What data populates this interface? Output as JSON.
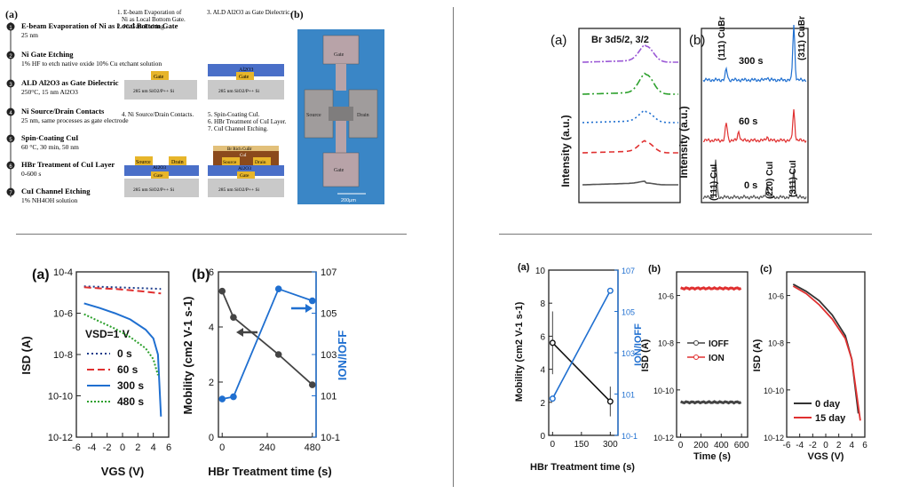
{
  "panel1": {
    "a_label": "(a)",
    "b_label": "(b)",
    "steps": [
      {
        "title": "E-beam Evaporation of Ni as Local Bottom Gate",
        "detail": "25 nm"
      },
      {
        "title": "Ni Gate Etching",
        "detail": "1% HF to etch native oxide 10% Cu etchant solution"
      },
      {
        "title": "ALD Al2O3 as Gate Dielectric",
        "detail": "250°C, 15 nm Al2O3"
      },
      {
        "title": "Ni Source/Drain Contacts",
        "detail": "25 nm, same processes as gate electrode"
      },
      {
        "title": "Spin-Coating CuI",
        "detail": "60 °C, 30 min, 50 nm"
      },
      {
        "title": "HBr Treatment of CuI Layer",
        "detail": "0-600 s"
      },
      {
        "title": "CuI Channel Etching",
        "detail": "1% NH4OH solution"
      }
    ],
    "cap1": [
      "1. E-beam Evaporation of",
      "Ni as Local Bottom Gate.",
      "2. Ni Gate Etching."
    ],
    "cap2": [
      "3. ALD Al2O3 as Gate Dielectric."
    ],
    "cap3": [
      "4. Ni Source/Drain Contacts."
    ],
    "cap4": [
      "5. Spin-Coating CuI.",
      "6. HBr Treatment of CuI Layer.",
      "7. CuI Channel Etching."
    ],
    "substrate": "285 nm SiO2/P++ Si",
    "gate": "Gate",
    "source": "Source",
    "drain": "Drain",
    "al2o3": "Al2O3",
    "br_rich": "Br Rich CuBr",
    "cui_layer": "CuI",
    "device": {
      "gate": "Gate",
      "source": "Source",
      "drain": "Drain",
      "scale": "200μm"
    }
  },
  "panel2": {
    "a_label": "(a)",
    "b_label": "(b)",
    "ylabel": "Intensity (a.u.)",
    "br_label": "Br 3d5/2, 3/2",
    "xrd_top": [
      "(111) CuBr",
      "300 s",
      "(311) CuBr"
    ],
    "xrd_mid": "60 s",
    "xrd_bot": [
      "(111) CuI",
      "(220) CuI",
      "(311) CuI",
      "0 s"
    ],
    "colors": {
      "purple": "#9b59d6",
      "green": "#2ca02c",
      "blue": "#1f6fd0",
      "red": "#e03030",
      "gray": "#555555"
    }
  },
  "panel3": {
    "a_label": "(a)",
    "b_label": "(b)",
    "a_ylabel": "ISD (A)",
    "a_xlabel": "VGS (V)",
    "vsd": "VSD=1 V",
    "legend": [
      "0 s",
      "60 s",
      "300 s",
      "480 s"
    ],
    "a_yticks": [
      "10-4",
      "10-6",
      "10-8",
      "10-10",
      "10-12"
    ],
    "a_xticks": [
      "-6",
      "-4",
      "-2",
      "0",
      "2",
      "4",
      "6"
    ],
    "b_ylabel": "Mobility (cm2 V-1 s-1)",
    "b_y2label": "ION/IOFF",
    "b_xlabel": "HBr Treatment time (s)",
    "b_yticks": [
      "6",
      "4",
      "2",
      "0"
    ],
    "b_y2ticks": [
      "107",
      "105",
      "103",
      "101",
      "10-1"
    ],
    "b_xticks": [
      "0",
      "240",
      "480"
    ]
  },
  "panel4": {
    "a_label": "(a)",
    "b_label": "(b)",
    "c_label": "(c)",
    "a_ylabel": "Mobility (cm2 V-1 s-1)",
    "a_y2label": "ION/IOFF",
    "a_xlabel": "HBr Treatment time (s)",
    "a_yticks": [
      "10",
      "8",
      "6",
      "4",
      "2",
      "0"
    ],
    "a_y2ticks": [
      "107",
      "105",
      "103",
      "101",
      "10-1"
    ],
    "a_xticks": [
      "0",
      "150",
      "300"
    ],
    "b_ylabel": "ISD (A)",
    "b_xlabel": "Time (s)",
    "b_yticks": [
      "10-6",
      "10-8",
      "10-10",
      "10-12"
    ],
    "b_xticks": [
      "0",
      "200",
      "400",
      "600"
    ],
    "b_legend": [
      "IOFF",
      "ION"
    ],
    "c_ylabel": "ISD (A)",
    "c_xlabel": "VGS (V)",
    "c_yticks": [
      "10-6",
      "10-8",
      "10-10",
      "10-12"
    ],
    "c_xticks": [
      "-6",
      "-4",
      "-2",
      "0",
      "2",
      "4",
      "6"
    ],
    "c_legend": [
      "0 day",
      "15 day"
    ]
  },
  "chart_data": [
    {
      "type": "line",
      "title": "",
      "xlabel": "VGS (V)",
      "ylabel": "ISD (A)",
      "yscale": "log",
      "xlim": [
        -6,
        6
      ],
      "ylim": [
        1e-12,
        0.0001
      ],
      "series": [
        {
          "name": "0 s",
          "color": "#1a3a8a",
          "x": [
            -5,
            -3,
            -1,
            1,
            3,
            5
          ],
          "y": [
            2e-05,
            1.9e-05,
            1.8e-05,
            1.7e-05,
            1.6e-05,
            1.5e-05
          ]
        },
        {
          "name": "60 s",
          "color": "#e03030",
          "x": [
            -5,
            -3,
            -1,
            1,
            3,
            5
          ],
          "y": [
            1.8e-05,
            1.6e-05,
            1.5e-05,
            1.3e-05,
            1.1e-05,
            9e-06
          ]
        },
        {
          "name": "300 s",
          "color": "#1f6fd0",
          "x": [
            -5,
            -3,
            -1,
            1,
            3,
            4,
            4.6,
            5
          ],
          "y": [
            3e-06,
            1.8e-06,
            1e-06,
            5e-07,
            1.6e-07,
            6e-08,
            1e-08,
            1e-11
          ]
        },
        {
          "name": "480 s",
          "color": "#2ca02c",
          "x": [
            -5,
            -3,
            -1,
            1,
            3,
            4,
            4.6
          ],
          "y": [
            9e-07,
            4e-07,
            1.8e-07,
            7e-08,
            2e-08,
            6e-09,
            1e-09
          ]
        }
      ]
    },
    {
      "type": "line",
      "xlabel": "HBr Treatment time (s)",
      "ylabel": "Mobility (cm2 V-1 s-1)",
      "y2label": "ION/IOFF",
      "xlim": [
        -20,
        500
      ],
      "ylim": [
        0,
        6
      ],
      "y2lim": [
        0.1,
        10000000
      ],
      "y2scale": "log",
      "series": [
        {
          "name": "Mobility",
          "color": "#444444",
          "x": [
            0,
            60,
            300,
            480
          ],
          "y": [
            5.3,
            4.35,
            3.0,
            1.9
          ]
        },
        {
          "name": "ION/IOFF",
          "color": "#1f6fd0",
          "axis": "y2",
          "x": [
            0,
            60,
            300,
            480
          ],
          "y": [
            7,
            9,
            1500000,
            400000
          ]
        }
      ]
    },
    {
      "type": "line",
      "xlabel": "HBr Treatment time (s)",
      "ylabel": "Mobility (cm2 V-1 s-1)",
      "y2label": "ION/IOFF",
      "xlim": [
        -20,
        340
      ],
      "ylim": [
        0,
        10
      ],
      "y2lim": [
        0.1,
        10000000
      ],
      "y2scale": "log",
      "series": [
        {
          "name": "Mobility",
          "color": "#111111",
          "x": [
            0,
            300
          ],
          "y": [
            5.6,
            2.05
          ],
          "err": [
            1.9,
            0.9
          ]
        },
        {
          "name": "ION/IOFF",
          "color": "#1f6fd0",
          "axis": "y2",
          "x": [
            0,
            300
          ],
          "y": [
            6,
            1000000
          ]
        }
      ]
    },
    {
      "type": "line",
      "xlabel": "Time (s)",
      "ylabel": "ISD (A)",
      "yscale": "log",
      "xlim": [
        -40,
        660
      ],
      "ylim": [
        1e-12,
        1e-05
      ],
      "series": [
        {
          "name": "IOFF",
          "color": "#444444",
          "x": [
            0,
            100,
            200,
            300,
            400,
            500,
            600
          ],
          "y": [
            3e-11,
            3e-11,
            3e-11,
            3e-11,
            3e-11,
            3e-11,
            3e-11
          ]
        },
        {
          "name": "ION",
          "color": "#e03030",
          "x": [
            0,
            100,
            200,
            300,
            400,
            500,
            600
          ],
          "y": [
            2e-06,
            2e-06,
            2e-06,
            2e-06,
            2e-06,
            2e-06,
            2e-06
          ]
        }
      ]
    },
    {
      "type": "line",
      "xlabel": "VGS (V)",
      "ylabel": "ISD (A)",
      "yscale": "log",
      "xlim": [
        -6,
        6
      ],
      "ylim": [
        1e-12,
        1e-05
      ],
      "series": [
        {
          "name": "0 day",
          "color": "#333333",
          "x": [
            -5,
            -3,
            -1,
            1,
            3,
            4,
            5
          ],
          "y": [
            3e-06,
            1.5e-06,
            6e-07,
            1.5e-07,
            2e-08,
            2e-09,
            1e-11
          ]
        },
        {
          "name": "15 day",
          "color": "#e03030",
          "x": [
            -5,
            -3,
            -1,
            1,
            3,
            4,
            5.3
          ],
          "y": [
            2.5e-06,
            1.2e-06,
            4e-07,
            1e-07,
            1.5e-08,
            2e-09,
            5e-12
          ]
        }
      ]
    }
  ]
}
